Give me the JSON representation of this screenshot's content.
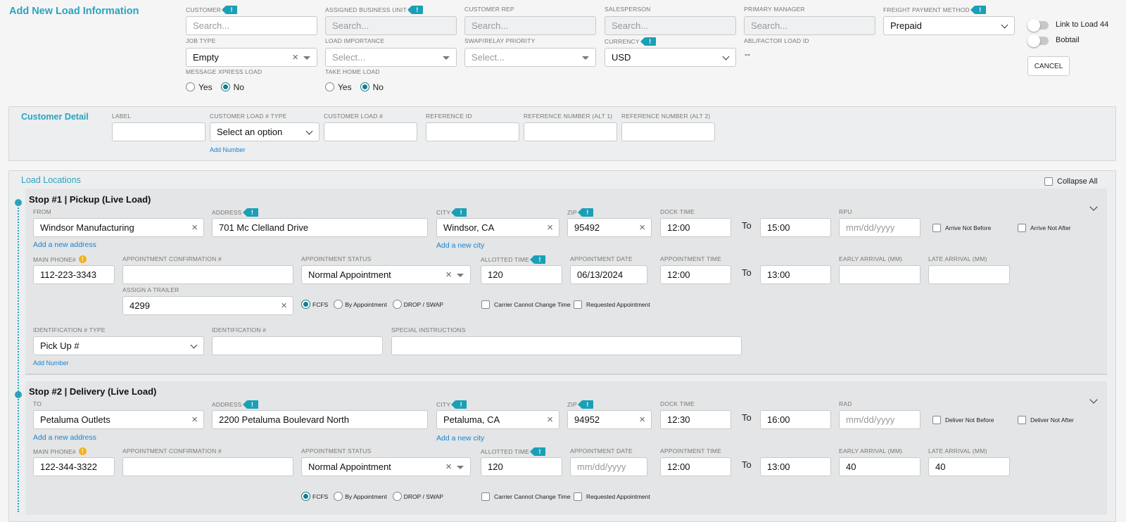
{
  "header": {
    "title": "Add New Load Information",
    "cancel": "CANCEL"
  },
  "fields": {
    "customer": {
      "label": "CUSTOMER",
      "placeholder": "Search..."
    },
    "business_unit": {
      "label": "ASSIGNED BUSINESS UNIT",
      "placeholder": "Search..."
    },
    "customer_rep": {
      "label": "CUSTOMER REP",
      "placeholder": "Search..."
    },
    "salesperson": {
      "label": "SALESPERSON",
      "placeholder": "Search..."
    },
    "primary_manager": {
      "label": "PRIMARY MANAGER",
      "placeholder": "Search..."
    },
    "freight_payment": {
      "label": "FREIGHT PAYMENT METHOD",
      "value": "Prepaid"
    },
    "job_type": {
      "label": "JOB TYPE",
      "value": "Empty"
    },
    "load_importance": {
      "label": "LOAD IMPORTANCE",
      "placeholder": "Select..."
    },
    "swap_priority": {
      "label": "SWAP/RELAY PRIORITY",
      "placeholder": "Select..."
    },
    "currency": {
      "label": "CURRENCY",
      "value": "USD"
    },
    "abl_factor": {
      "label": "ABL/FACTOR LOAD ID",
      "value": "--"
    },
    "message_xpress": {
      "label": "MESSAGE XPRESS LOAD",
      "yes": "Yes",
      "no": "No"
    },
    "take_home": {
      "label": "TAKE HOME LOAD",
      "yes": "Yes",
      "no": "No"
    }
  },
  "toggles": {
    "link": "Link to Load 44",
    "bobtail": "Bobtail"
  },
  "customer_detail": {
    "title": "Customer Detail",
    "label": "LABEL",
    "load_type_label": "CUSTOMER LOAD # TYPE",
    "load_type_value": "Select an option",
    "load_num": "CUSTOMER LOAD #",
    "ref_id": "REFERENCE ID",
    "ref_alt1": "REFERENCE NUMBER (ALT 1)",
    "ref_alt2": "REFERENCE NUMBER (ALT 2)",
    "add_number": "Add Number"
  },
  "locations": {
    "title": "Load Locations",
    "collapse": "Collapse All"
  },
  "labels": {
    "address": "ADDRESS",
    "city": "CITY",
    "zip": "ZIP",
    "dock_time": "DOCK TIME",
    "to": "To",
    "main_phone": "MAIN PHONE#",
    "appt_conf": "APPOINTMENT CONFIRMATION #",
    "appt_status": "APPOINTMENT STATUS",
    "allotted": "ALLOTTED TIME",
    "appt_date": "APPOINTMENT DATE",
    "appt_time": "APPOINTMENT TIME",
    "early": "EARLY ARRIVAL (MM)",
    "late": "LATE ARRIVAL (MM)",
    "assign_trailer": "ASSIGN A TRAILER",
    "fcfs": "FCFS",
    "by_appt": "By Appointment",
    "drop_swap": "DROP / SWAP",
    "carrier_cannot": "Carrier Cannot Change Time",
    "requested": "Requested Appointment",
    "id_type": "IDENTIFICATION # TYPE",
    "id_num": "IDENTIFICATION #",
    "special": "SPECIAL INSTRUCTIONS",
    "add_address": "Add a new address",
    "add_city": "Add a new city",
    "add_number": "Add Number",
    "date_ph": "mm/dd/yyyy"
  },
  "stop1": {
    "title": "Stop #1 | Pickup (Live Load)",
    "from_label": "FROM",
    "from": "Windsor Manufacturing",
    "address": "701 Mc Clelland Drive",
    "city": "Windsor, CA",
    "zip": "95492",
    "dock_from": "12:00",
    "dock_to": "15:00",
    "rpu_label": "RPU",
    "arrive_nb": "Arrive Not Before",
    "arrive_na": "Arrive Not After",
    "phone": "112-223-3343",
    "appt_status": "Normal Appointment",
    "allotted": "120",
    "appt_date": "06/13/2024",
    "appt_from": "12:00",
    "appt_to": "13:00",
    "trailer": "4299",
    "id_type": "Pick Up #"
  },
  "stop2": {
    "title": "Stop #2 | Delivery (Live Load)",
    "to_label": "TO",
    "to_value": "Petaluma Outlets",
    "address": "2200 Petaluma Boulevard North",
    "city": "Petaluma, CA",
    "zip": "94952",
    "dock_from": "12:30",
    "dock_to": "16:00",
    "rad_label": "RAD",
    "deliver_nb": "Deliver Not Before",
    "deliver_na": "Deliver Not After",
    "phone": "122-344-3322",
    "appt_status": "Normal Appointment",
    "allotted": "120",
    "appt_from": "12:00",
    "appt_to": "13:00",
    "early": "40",
    "late": "40"
  }
}
